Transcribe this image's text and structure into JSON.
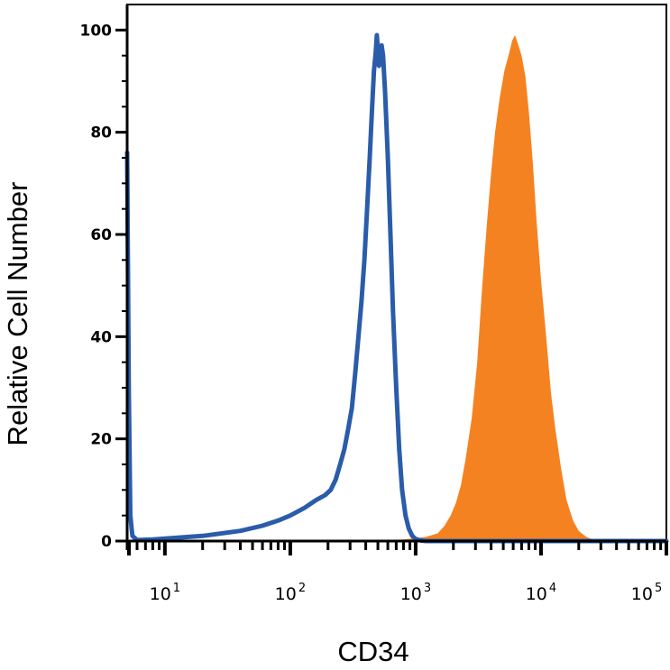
{
  "chart_data": {
    "type": "area",
    "xlabel": "CD34",
    "ylabel": "Relative Cell Number",
    "xscale": "log",
    "xlim": [
      5,
      100000
    ],
    "ylim": [
      0,
      105
    ],
    "yticks": [
      {
        "value": 0,
        "label": "0"
      },
      {
        "value": 20,
        "label": "20"
      },
      {
        "value": 40,
        "label": "40"
      },
      {
        "value": 60,
        "label": "60"
      },
      {
        "value": 80,
        "label": "80"
      },
      {
        "value": 100,
        "label": "100"
      }
    ],
    "xticks": [
      {
        "value": 10,
        "base": "10",
        "exp": "1"
      },
      {
        "value": 100,
        "base": "10",
        "exp": "2"
      },
      {
        "value": 1000,
        "base": "10",
        "exp": "3"
      },
      {
        "value": 10000,
        "base": "10",
        "exp": "4"
      },
      {
        "value": 100000,
        "base": "10",
        "exp": "5"
      }
    ],
    "grid": false,
    "legend": "none",
    "series": [
      {
        "style": "filled",
        "color": "#f58220",
        "points": [
          [
            5,
            0
          ],
          [
            300,
            0
          ],
          [
            800,
            0.3
          ],
          [
            1200,
            0.8
          ],
          [
            1500,
            1.5
          ],
          [
            1700,
            3
          ],
          [
            1900,
            5
          ],
          [
            2100,
            7.5
          ],
          [
            2300,
            11
          ],
          [
            2500,
            16
          ],
          [
            2800,
            24
          ],
          [
            3100,
            35
          ],
          [
            3400,
            50
          ],
          [
            3700,
            62
          ],
          [
            4000,
            72
          ],
          [
            4300,
            80
          ],
          [
            4700,
            87
          ],
          [
            5100,
            92
          ],
          [
            5500,
            95
          ],
          [
            5900,
            98
          ],
          [
            6200,
            99
          ],
          [
            6600,
            97
          ],
          [
            7000,
            95
          ],
          [
            7500,
            91
          ],
          [
            8000,
            84
          ],
          [
            8600,
            74
          ],
          [
            9200,
            63
          ],
          [
            10000,
            51
          ],
          [
            11000,
            40
          ],
          [
            12000,
            29
          ],
          [
            13000,
            22
          ],
          [
            14500,
            14
          ],
          [
            16000,
            8
          ],
          [
            18000,
            4
          ],
          [
            20000,
            2
          ],
          [
            23000,
            0.8
          ],
          [
            26000,
            0.3
          ],
          [
            30000,
            0
          ],
          [
            100000,
            0
          ]
        ]
      },
      {
        "style": "line",
        "color": "#2a5caa",
        "points": [
          [
            5,
            76
          ],
          [
            5.15,
            30
          ],
          [
            5.3,
            5
          ],
          [
            5.5,
            1
          ],
          [
            6,
            0.2
          ],
          [
            8,
            0.3
          ],
          [
            20,
            1
          ],
          [
            40,
            2
          ],
          [
            60,
            3
          ],
          [
            80,
            4
          ],
          [
            100,
            5
          ],
          [
            130,
            6.5
          ],
          [
            160,
            8
          ],
          [
            190,
            9
          ],
          [
            210,
            10
          ],
          [
            230,
            12
          ],
          [
            250,
            15
          ],
          [
            270,
            18
          ],
          [
            290,
            22
          ],
          [
            310,
            26
          ],
          [
            330,
            33
          ],
          [
            350,
            40
          ],
          [
            370,
            47
          ],
          [
            390,
            55
          ],
          [
            410,
            65
          ],
          [
            430,
            75
          ],
          [
            450,
            85
          ],
          [
            465,
            92
          ],
          [
            480,
            95.5
          ],
          [
            490,
            99
          ],
          [
            500,
            96
          ],
          [
            510,
            93
          ],
          [
            520,
            94
          ],
          [
            535,
            97
          ],
          [
            550,
            95
          ],
          [
            570,
            88
          ],
          [
            600,
            75
          ],
          [
            630,
            60
          ],
          [
            660,
            45
          ],
          [
            700,
            30
          ],
          [
            740,
            18
          ],
          [
            780,
            10
          ],
          [
            830,
            5
          ],
          [
            880,
            2.5
          ],
          [
            940,
            1
          ],
          [
            1000,
            0.4
          ],
          [
            1100,
            0.1
          ],
          [
            1200,
            0
          ],
          [
            100000,
            0
          ]
        ]
      }
    ]
  }
}
